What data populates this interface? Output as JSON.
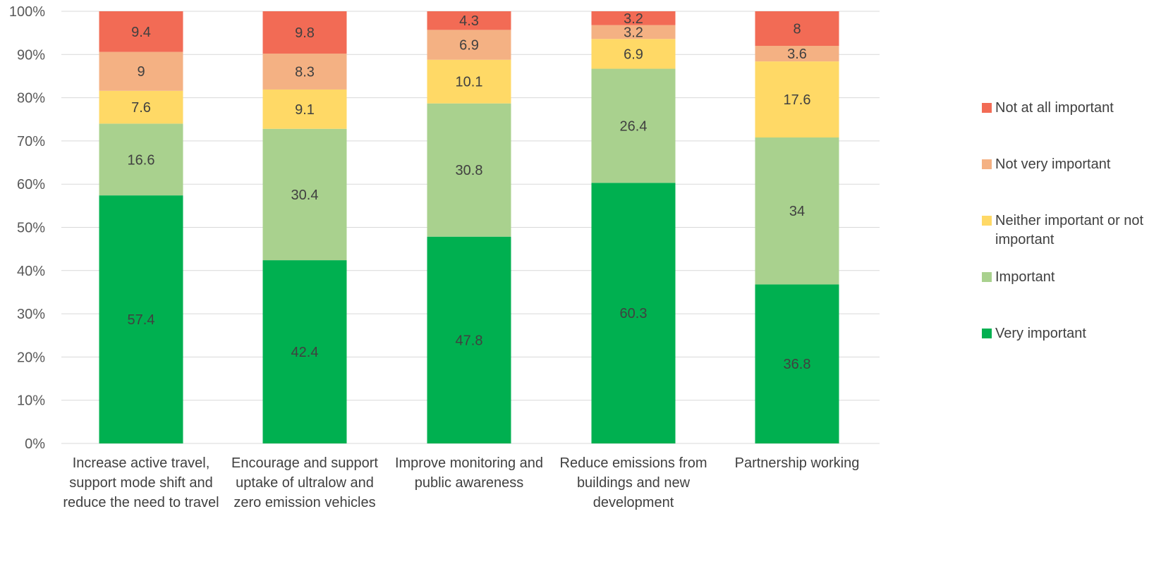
{
  "chart_data": {
    "type": "bar",
    "stacked": true,
    "percent_stacked": true,
    "categories": [
      "Increase active travel, support mode shift and reduce the need to travel",
      "Encourage and support uptake of ultralow and zero emission vehicles",
      "Improve monitoring and public awareness",
      "Reduce emissions from buildings and new development",
      "Partnership working"
    ],
    "series": [
      {
        "name": "Very important",
        "color": "#00b050",
        "values": [
          57.4,
          42.4,
          47.8,
          60.3,
          36.8
        ]
      },
      {
        "name": "Important",
        "color": "#a9d18e",
        "values": [
          16.6,
          30.4,
          30.8,
          26.4,
          34
        ]
      },
      {
        "name": "Neither important or not important",
        "color": "#ffd966",
        "values": [
          7.6,
          9.1,
          10.1,
          6.9,
          17.6
        ]
      },
      {
        "name": "Not very important",
        "color": "#f4b183",
        "values": [
          9,
          8.3,
          6.9,
          3.2,
          3.6
        ]
      },
      {
        "name": "Not at all important",
        "color": "#f26b55",
        "values": [
          9.4,
          9.8,
          4.3,
          3.2,
          8
        ]
      }
    ],
    "yticks": [
      "0%",
      "10%",
      "20%",
      "30%",
      "40%",
      "50%",
      "60%",
      "70%",
      "80%",
      "90%",
      "100%"
    ],
    "ylim": [
      0,
      100
    ],
    "grid": true,
    "legend_position": "right",
    "legend_order": [
      "Not at all important",
      "Not very important",
      "Neither important or not important",
      "Important",
      "Very important"
    ],
    "gridline_color": "#d9d9d9"
  }
}
